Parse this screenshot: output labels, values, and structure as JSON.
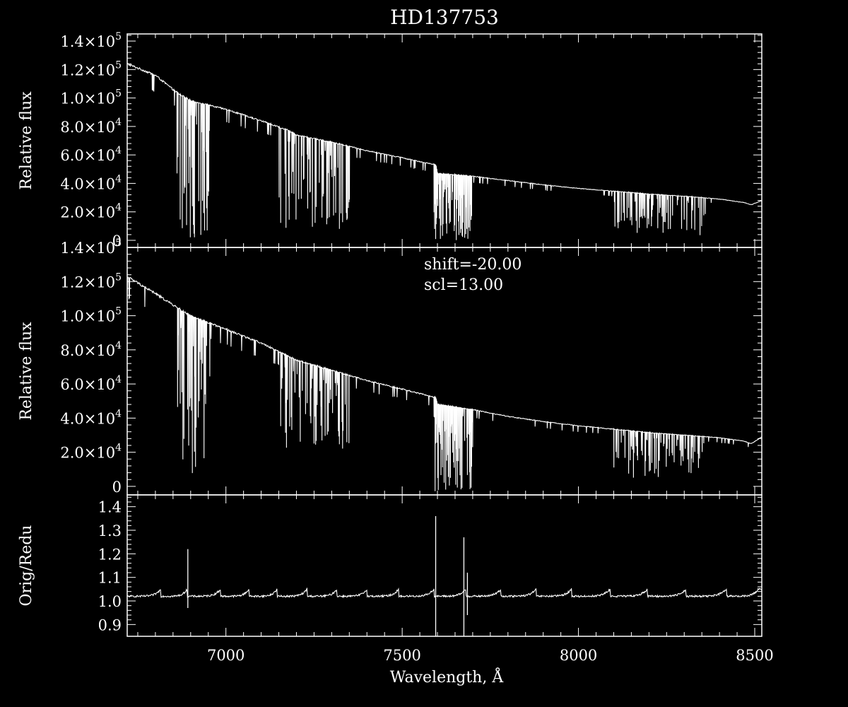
{
  "title": "HD137753",
  "colors": {
    "background": "#000000",
    "foreground": "#ffffff"
  },
  "annotations": {
    "shift": "shift=-20.00",
    "scl": "scl=13.00"
  },
  "chart_data": [
    {
      "type": "line",
      "panel": "original",
      "title": "HD137753",
      "ylabel": "Relative flux",
      "xlim": [
        6720,
        8520
      ],
      "ylim": [
        -5000,
        145000
      ],
      "yticks": [
        {
          "v": 0,
          "m": "0",
          "e": ""
        },
        {
          "v": 20000,
          "m": "2.0×10",
          "e": "4"
        },
        {
          "v": 40000,
          "m": "4.0×10",
          "e": "4"
        },
        {
          "v": 60000,
          "m": "6.0×10",
          "e": "4"
        },
        {
          "v": 80000,
          "m": "8.0×10",
          "e": "4"
        },
        {
          "v": 100000,
          "m": "1.0×10",
          "e": "5"
        },
        {
          "v": 120000,
          "m": "1.2×10",
          "e": "5"
        },
        {
          "v": 140000,
          "m": "1.4×10",
          "e": "5"
        }
      ],
      "continuum": {
        "x": [
          6720,
          6800,
          6860,
          6900,
          7000,
          7100,
          7180,
          7200,
          7300,
          7400,
          7500,
          7595,
          7600,
          7700,
          7800,
          7900,
          8000,
          8100,
          8200,
          8300,
          8400,
          8470,
          8490,
          8520
        ],
        "y": [
          124000,
          116000,
          104000,
          98000,
          92000,
          84000,
          77000,
          74000,
          69000,
          63000,
          58000,
          53000,
          47000,
          45000,
          42000,
          39000,
          36500,
          34500,
          32500,
          31000,
          29000,
          26500,
          25000,
          28000
        ]
      },
      "absorption_bands": [
        {
          "x": [
            6860,
            6955
          ],
          "min": 2000,
          "frac": 0.55
        },
        {
          "x": [
            7150,
            7350
          ],
          "min": 7000,
          "frac": 0.4
        },
        {
          "x": [
            7590,
            7700
          ],
          "min": 0,
          "frac": 0.75
        },
        {
          "x": [
            8100,
            8360
          ],
          "min": 3000,
          "frac": 0.3
        }
      ]
    },
    {
      "type": "line",
      "panel": "reduced",
      "ylabel": "Relative flux",
      "xlim": [
        6720,
        8520
      ],
      "ylim": [
        -5000,
        140000
      ],
      "yticks": [
        {
          "v": 0,
          "m": "0",
          "e": ""
        },
        {
          "v": 20000,
          "m": "2.0×10",
          "e": "4"
        },
        {
          "v": 40000,
          "m": "4.0×10",
          "e": "4"
        },
        {
          "v": 60000,
          "m": "6.0×10",
          "e": "4"
        },
        {
          "v": 80000,
          "m": "8.0×10",
          "e": "4"
        },
        {
          "v": 100000,
          "m": "1.0×10",
          "e": "5"
        },
        {
          "v": 120000,
          "m": "1.2×10",
          "e": "5"
        },
        {
          "v": 140000,
          "m": "1.4×10",
          "e": "5"
        }
      ],
      "continuum": {
        "x": [
          6720,
          6800,
          6860,
          6900,
          7000,
          7100,
          7180,
          7200,
          7300,
          7400,
          7500,
          7595,
          7600,
          7700,
          7800,
          7900,
          8000,
          8100,
          8200,
          8300,
          8400,
          8470,
          8490,
          8520
        ],
        "y": [
          123000,
          113000,
          105000,
          100000,
          92000,
          84000,
          76000,
          74000,
          68000,
          62000,
          57000,
          52000,
          48000,
          45000,
          41000,
          38000,
          35500,
          33500,
          31500,
          30000,
          28500,
          26500,
          25000,
          29000
        ]
      },
      "absorption_bands": [
        {
          "x": [
            6860,
            6955
          ],
          "min": 5000,
          "frac": 0.55
        },
        {
          "x": [
            7150,
            7350
          ],
          "min": 22000,
          "frac": 0.35
        },
        {
          "x": [
            7590,
            7700
          ],
          "min": -3000,
          "frac": 0.75
        },
        {
          "x": [
            8100,
            8360
          ],
          "min": 5000,
          "frac": 0.3
        }
      ]
    },
    {
      "type": "line",
      "panel": "ratio",
      "xlabel": "Wavelength, Å",
      "ylabel": "Orig/Redu",
      "xlim": [
        6720,
        8520
      ],
      "ylim": [
        0.85,
        1.45
      ],
      "xticks": [
        7000,
        7500,
        8000,
        8500
      ],
      "yticks": [
        {
          "v": 0.9,
          "m": "0.9",
          "e": ""
        },
        {
          "v": 1.0,
          "m": "1.0",
          "e": ""
        },
        {
          "v": 1.1,
          "m": "1.1",
          "e": ""
        },
        {
          "v": 1.2,
          "m": "1.2",
          "e": ""
        },
        {
          "v": 1.3,
          "m": "1.3",
          "e": ""
        },
        {
          "v": 1.4,
          "m": "1.4",
          "e": ""
        }
      ],
      "baseline": 1.02,
      "scallop_peaks_x": [
        6815,
        6890,
        6985,
        7065,
        7145,
        7230,
        7315,
        7400,
        7490,
        7590,
        7680,
        7780,
        7880,
        7980,
        8090,
        8195,
        8305,
        8420
      ],
      "spikes": [
        {
          "x": 6892,
          "top": 1.22,
          "bottom": 0.97
        },
        {
          "x": 7595,
          "top": 1.36,
          "bottom": 0.85
        },
        {
          "x": 7675,
          "top": 1.27,
          "bottom": 0.85
        },
        {
          "x": 7685,
          "top": 1.12,
          "bottom": 0.94
        }
      ]
    }
  ]
}
